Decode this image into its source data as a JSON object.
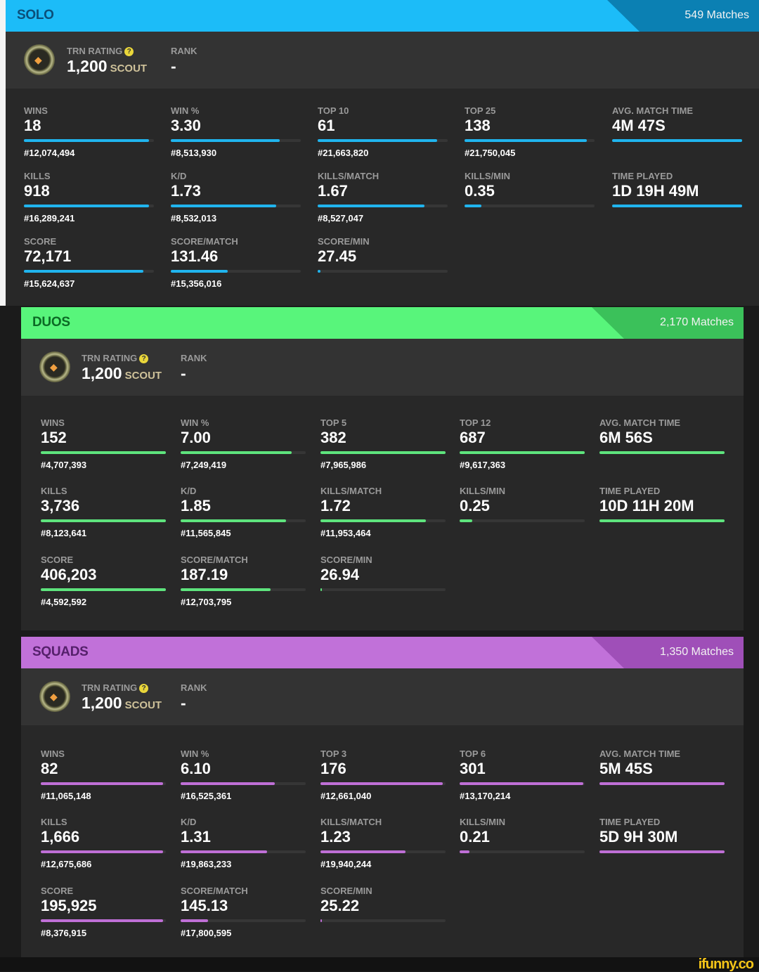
{
  "sections": [
    {
      "title": "SOLO",
      "matches": "549 Matches",
      "color": "#1cbcf8",
      "dark": "#0b80b3",
      "title_color": "#0b4f7a",
      "bar_color": "#20b4ee",
      "trn_label": "TRN RATING",
      "rating": "1,200",
      "tier": "SCOUT",
      "rank_label": "RANK",
      "rank": "-",
      "stats": [
        [
          {
            "label": "WINS",
            "value": "18",
            "rank": "#12,074,494",
            "fill": 96
          },
          {
            "label": "WIN %",
            "value": "3.30",
            "rank": "#8,513,930",
            "fill": 84
          },
          {
            "label": "TOP 10",
            "value": "61",
            "rank": "#21,663,820",
            "fill": 92
          },
          {
            "label": "TOP 25",
            "value": "138",
            "rank": "#21,750,045",
            "fill": 94
          },
          {
            "label": "AVG. MATCH TIME",
            "value": "4M 47S",
            "rank": "",
            "fill": 100
          }
        ],
        [
          {
            "label": "KILLS",
            "value": "918",
            "rank": "#16,289,241",
            "fill": 96
          },
          {
            "label": "K/D",
            "value": "1.73",
            "rank": "#8,532,013",
            "fill": 81
          },
          {
            "label": "KILLS/MATCH",
            "value": "1.67",
            "rank": "#8,527,047",
            "fill": 82
          },
          {
            "label": "KILLS/MIN",
            "value": "0.35",
            "rank": "",
            "fill": 13
          },
          {
            "label": "TIME PLAYED",
            "value": "1D 19H 49M",
            "rank": "",
            "fill": 100
          }
        ],
        [
          {
            "label": "SCORE",
            "value": "72,171",
            "rank": "#15,624,637",
            "fill": 92
          },
          {
            "label": "SCORE/MATCH",
            "value": "131.46",
            "rank": "#15,356,016",
            "fill": 44
          },
          {
            "label": "SCORE/MIN",
            "value": "27.45",
            "rank": "",
            "fill": 2
          }
        ]
      ]
    },
    {
      "title": "DUOS",
      "matches": "2,170 Matches",
      "color": "#58f57b",
      "dark": "#3bc15a",
      "title_color": "#0c6a25",
      "bar_color": "#5ee47d",
      "trn_label": "TRN RATING",
      "rating": "1,200",
      "tier": "SCOUT",
      "rank_label": "RANK",
      "rank": "-",
      "stats": [
        [
          {
            "label": "WINS",
            "value": "152",
            "rank": "#4,707,393",
            "fill": 100
          },
          {
            "label": "WIN %",
            "value": "7.00",
            "rank": "#7,249,419",
            "fill": 89
          },
          {
            "label": "TOP 5",
            "value": "382",
            "rank": "#7,965,986",
            "fill": 100
          },
          {
            "label": "TOP 12",
            "value": "687",
            "rank": "#9,617,363",
            "fill": 100
          },
          {
            "label": "AVG. MATCH TIME",
            "value": "6M 56S",
            "rank": "",
            "fill": 100
          }
        ],
        [
          {
            "label": "KILLS",
            "value": "3,736",
            "rank": "#8,123,641",
            "fill": 100
          },
          {
            "label": "K/D",
            "value": "1.85",
            "rank": "#11,565,845",
            "fill": 84
          },
          {
            "label": "KILLS/MATCH",
            "value": "1.72",
            "rank": "#11,953,464",
            "fill": 84
          },
          {
            "label": "KILLS/MIN",
            "value": "0.25",
            "rank": "",
            "fill": 10
          },
          {
            "label": "TIME PLAYED",
            "value": "10D 11H 20M",
            "rank": "",
            "fill": 100
          }
        ],
        [
          {
            "label": "SCORE",
            "value": "406,203",
            "rank": "#4,592,592",
            "fill": 100
          },
          {
            "label": "SCORE/MATCH",
            "value": "187.19",
            "rank": "#12,703,795",
            "fill": 72
          },
          {
            "label": "SCORE/MIN",
            "value": "26.94",
            "rank": "",
            "fill": 1
          }
        ]
      ]
    },
    {
      "title": "SQUADS",
      "matches": "1,350 Matches",
      "color": "#c171d9",
      "dark": "#9f4fb8",
      "title_color": "#55206b",
      "bar_color": "#bf6fd6",
      "trn_label": "TRN RATING",
      "rating": "1,200",
      "tier": "SCOUT",
      "rank_label": "RANK",
      "rank": "-",
      "stats": [
        [
          {
            "label": "WINS",
            "value": "82",
            "rank": "#11,065,148",
            "fill": 98
          },
          {
            "label": "WIN %",
            "value": "6.10",
            "rank": "#16,525,361",
            "fill": 75
          },
          {
            "label": "TOP 3",
            "value": "176",
            "rank": "#12,661,040",
            "fill": 98
          },
          {
            "label": "TOP 6",
            "value": "301",
            "rank": "#13,170,214",
            "fill": 99
          },
          {
            "label": "AVG. MATCH TIME",
            "value": "5M 45S",
            "rank": "",
            "fill": 100
          }
        ],
        [
          {
            "label": "KILLS",
            "value": "1,666",
            "rank": "#12,675,686",
            "fill": 98
          },
          {
            "label": "K/D",
            "value": "1.31",
            "rank": "#19,863,233",
            "fill": 69
          },
          {
            "label": "KILLS/MATCH",
            "value": "1.23",
            "rank": "#19,940,244",
            "fill": 68
          },
          {
            "label": "KILLS/MIN",
            "value": "0.21",
            "rank": "",
            "fill": 8
          },
          {
            "label": "TIME PLAYED",
            "value": "5D 9H 30M",
            "rank": "",
            "fill": 100
          }
        ],
        [
          {
            "label": "SCORE",
            "value": "195,925",
            "rank": "#8,376,915",
            "fill": 98
          },
          {
            "label": "SCORE/MATCH",
            "value": "145.13",
            "rank": "#17,800,595",
            "fill": 22
          },
          {
            "label": "SCORE/MIN",
            "value": "25.22",
            "rank": "",
            "fill": 1
          }
        ]
      ]
    }
  ],
  "watermark": "ifunny.co"
}
